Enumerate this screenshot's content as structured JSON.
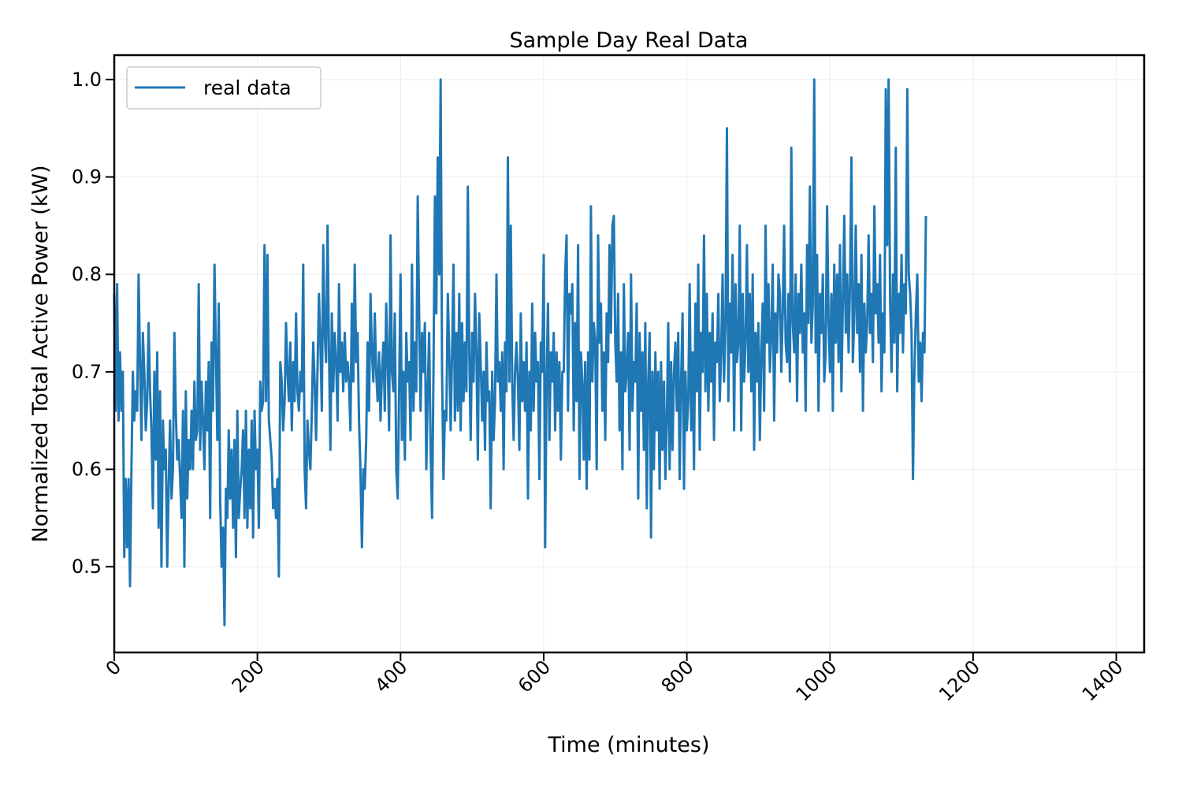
{
  "chart_data": {
    "type": "line",
    "title": "Sample Day Real Data",
    "xlabel": "Time (minutes)",
    "ylabel": "Normalized Total Active Power (kW)",
    "xlim": [
      0,
      1439
    ],
    "ylim": [
      0.412,
      1.025
    ],
    "x_ticks": [
      0,
      200,
      400,
      600,
      800,
      1000,
      1200,
      1400
    ],
    "x_tick_labels": [
      "0",
      "200",
      "400",
      "600",
      "800",
      "1000",
      "1200",
      "1400"
    ],
    "y_ticks": [
      0.5,
      0.6,
      0.7,
      0.8,
      0.9,
      1.0
    ],
    "y_tick_labels": [
      "0.5",
      "0.6",
      "0.7",
      "0.8",
      "0.9",
      "1.0"
    ],
    "grid": true,
    "legend": {
      "position": "top-left",
      "entries": [
        "real data"
      ]
    },
    "series": [
      {
        "name": "real data",
        "color": "#1f77b4",
        "x_step": 2,
        "values": [
          0.78,
          0.66,
          0.79,
          0.65,
          0.72,
          0.66,
          0.7,
          0.51,
          0.59,
          0.52,
          0.59,
          0.48,
          0.6,
          0.7,
          0.65,
          0.68,
          0.66,
          0.8,
          0.71,
          0.63,
          0.74,
          0.7,
          0.64,
          0.67,
          0.75,
          0.68,
          0.64,
          0.56,
          0.7,
          0.61,
          0.72,
          0.54,
          0.68,
          0.5,
          0.65,
          0.6,
          0.62,
          0.5,
          0.58,
          0.65,
          0.57,
          0.6,
          0.74,
          0.66,
          0.61,
          0.63,
          0.59,
          0.55,
          0.66,
          0.5,
          0.68,
          0.57,
          0.63,
          0.6,
          0.66,
          0.6,
          0.69,
          0.63,
          0.64,
          0.79,
          0.62,
          0.69,
          0.65,
          0.6,
          0.69,
          0.64,
          0.71,
          0.55,
          0.73,
          0.66,
          0.81,
          0.72,
          0.63,
          0.77,
          0.57,
          0.5,
          0.54,
          0.44,
          0.58,
          0.55,
          0.64,
          0.57,
          0.62,
          0.54,
          0.63,
          0.51,
          0.66,
          0.55,
          0.58,
          0.6,
          0.64,
          0.55,
          0.66,
          0.54,
          0.62,
          0.56,
          0.65,
          0.53,
          0.66,
          0.6,
          0.62,
          0.54,
          0.69,
          0.66,
          0.67,
          0.83,
          0.67,
          0.82,
          0.65,
          0.63,
          0.61,
          0.56,
          0.58,
          0.55,
          0.59,
          0.49,
          0.71,
          0.69,
          0.64,
          0.67,
          0.75,
          0.7,
          0.67,
          0.73,
          0.64,
          0.71,
          0.67,
          0.76,
          0.68,
          0.66,
          0.7,
          0.68,
          0.81,
          0.6,
          0.56,
          0.65,
          0.62,
          0.6,
          0.66,
          0.73,
          0.69,
          0.63,
          0.7,
          0.78,
          0.73,
          0.66,
          0.83,
          0.74,
          0.71,
          0.85,
          0.72,
          0.62,
          0.76,
          0.68,
          0.74,
          0.71,
          0.65,
          0.79,
          0.7,
          0.73,
          0.68,
          0.74,
          0.69,
          0.71,
          0.69,
          0.64,
          0.77,
          0.69,
          0.81,
          0.71,
          0.74,
          0.65,
          0.6,
          0.52,
          0.6,
          0.58,
          0.63,
          0.73,
          0.66,
          0.78,
          0.72,
          0.69,
          0.76,
          0.7,
          0.67,
          0.72,
          0.65,
          0.7,
          0.73,
          0.66,
          0.77,
          0.71,
          0.64,
          0.84,
          0.7,
          0.68,
          0.76,
          0.6,
          0.57,
          0.68,
          0.8,
          0.63,
          0.7,
          0.61,
          0.74,
          0.69,
          0.71,
          0.63,
          0.81,
          0.66,
          0.73,
          0.68,
          0.88,
          0.76,
          0.66,
          0.74,
          0.7,
          0.75,
          0.6,
          0.68,
          0.74,
          0.62,
          0.55,
          0.7,
          0.88,
          0.76,
          0.92,
          0.8,
          1.0,
          0.7,
          0.59,
          0.66,
          0.65,
          0.78,
          0.72,
          0.64,
          0.72,
          0.81,
          0.65,
          0.74,
          0.66,
          0.78,
          0.64,
          0.75,
          0.67,
          0.73,
          0.68,
          0.89,
          0.72,
          0.63,
          0.74,
          0.69,
          0.78,
          0.72,
          0.61,
          0.76,
          0.71,
          0.65,
          0.7,
          0.62,
          0.73,
          0.67,
          0.68,
          0.56,
          0.7,
          0.63,
          0.67,
          0.8,
          0.69,
          0.71,
          0.66,
          0.72,
          0.6,
          0.73,
          0.68,
          0.92,
          0.69,
          0.85,
          0.69,
          0.63,
          0.7,
          0.73,
          0.69,
          0.62,
          0.76,
          0.67,
          0.71,
          0.66,
          0.73,
          0.57,
          0.7,
          0.64,
          0.77,
          0.66,
          0.74,
          0.69,
          0.71,
          0.59,
          0.73,
          0.7,
          0.82,
          0.52,
          0.69,
          0.77,
          0.63,
          0.72,
          0.69,
          0.74,
          0.64,
          0.72,
          0.66,
          0.71,
          0.61,
          0.7,
          0.7,
          0.8,
          0.84,
          0.66,
          0.78,
          0.76,
          0.79,
          0.64,
          0.75,
          0.67,
          0.83,
          0.59,
          0.72,
          0.69,
          0.61,
          0.71,
          0.58,
          0.72,
          0.61,
          0.87,
          0.69,
          0.75,
          0.73,
          0.6,
          0.84,
          0.73,
          0.77,
          0.66,
          0.72,
          0.63,
          0.76,
          0.71,
          0.83,
          0.74,
          0.85,
          0.86,
          0.73,
          0.69,
          0.78,
          0.64,
          0.72,
          0.6,
          0.79,
          0.68,
          0.7,
          0.74,
          0.62,
          0.8,
          0.66,
          0.71,
          0.69,
          0.77,
          0.57,
          0.74,
          0.66,
          0.72,
          0.62,
          0.75,
          0.56,
          0.69,
          0.74,
          0.53,
          0.7,
          0.6,
          0.72,
          0.64,
          0.7,
          0.58,
          0.71,
          0.62,
          0.69,
          0.59,
          0.65,
          0.75,
          0.6,
          0.71,
          0.62,
          0.7,
          0.73,
          0.66,
          0.74,
          0.59,
          0.69,
          0.76,
          0.58,
          0.7,
          0.64,
          0.67,
          0.79,
          0.64,
          0.72,
          0.6,
          0.77,
          0.68,
          0.81,
          0.62,
          0.74,
          0.7,
          0.84,
          0.68,
          0.78,
          0.66,
          0.74,
          0.69,
          0.76,
          0.63,
          0.73,
          0.71,
          0.78,
          0.67,
          0.72,
          0.8,
          0.69,
          0.75,
          0.95,
          0.67,
          0.77,
          0.72,
          0.82,
          0.64,
          0.79,
          0.71,
          0.73,
          0.85,
          0.64,
          0.78,
          0.69,
          0.73,
          0.83,
          0.7,
          0.78,
          0.68,
          0.8,
          0.62,
          0.74,
          0.69,
          0.75,
          0.63,
          0.72,
          0.77,
          0.66,
          0.85,
          0.73,
          0.79,
          0.7,
          0.74,
          0.81,
          0.65,
          0.76,
          0.72,
          0.8,
          0.78,
          0.7,
          0.76,
          0.85,
          0.73,
          0.71,
          0.78,
          0.69,
          0.93,
          0.75,
          0.72,
          0.8,
          0.67,
          0.78,
          0.74,
          0.81,
          0.72,
          0.76,
          0.66,
          0.83,
          0.75,
          0.89,
          0.73,
          0.77,
          1.0,
          0.72,
          0.82,
          0.66,
          0.78,
          0.74,
          0.8,
          0.69,
          0.72,
          0.87,
          0.75,
          0.7,
          0.78,
          0.66,
          0.81,
          0.73,
          0.8,
          0.71,
          0.83,
          0.68,
          0.77,
          0.86,
          0.74,
          0.8,
          0.72,
          0.79,
          0.92,
          0.71,
          0.76,
          0.85,
          0.74,
          0.79,
          0.7,
          0.82,
          0.66,
          0.77,
          0.72,
          0.75,
          0.84,
          0.74,
          0.78,
          0.71,
          0.87,
          0.76,
          0.79,
          0.73,
          0.82,
          0.68,
          0.76,
          0.72,
          0.99,
          0.83,
          1.0,
          0.77,
          0.7,
          0.8,
          0.73,
          0.93,
          0.68,
          0.78,
          0.74,
          0.82,
          0.72,
          0.79,
          0.76,
          0.99,
          0.8,
          0.78,
          0.74,
          0.59,
          0.7,
          0.76,
          0.8,
          0.69,
          0.73,
          0.67,
          0.74,
          0.72,
          0.86
        ]
      }
    ]
  }
}
